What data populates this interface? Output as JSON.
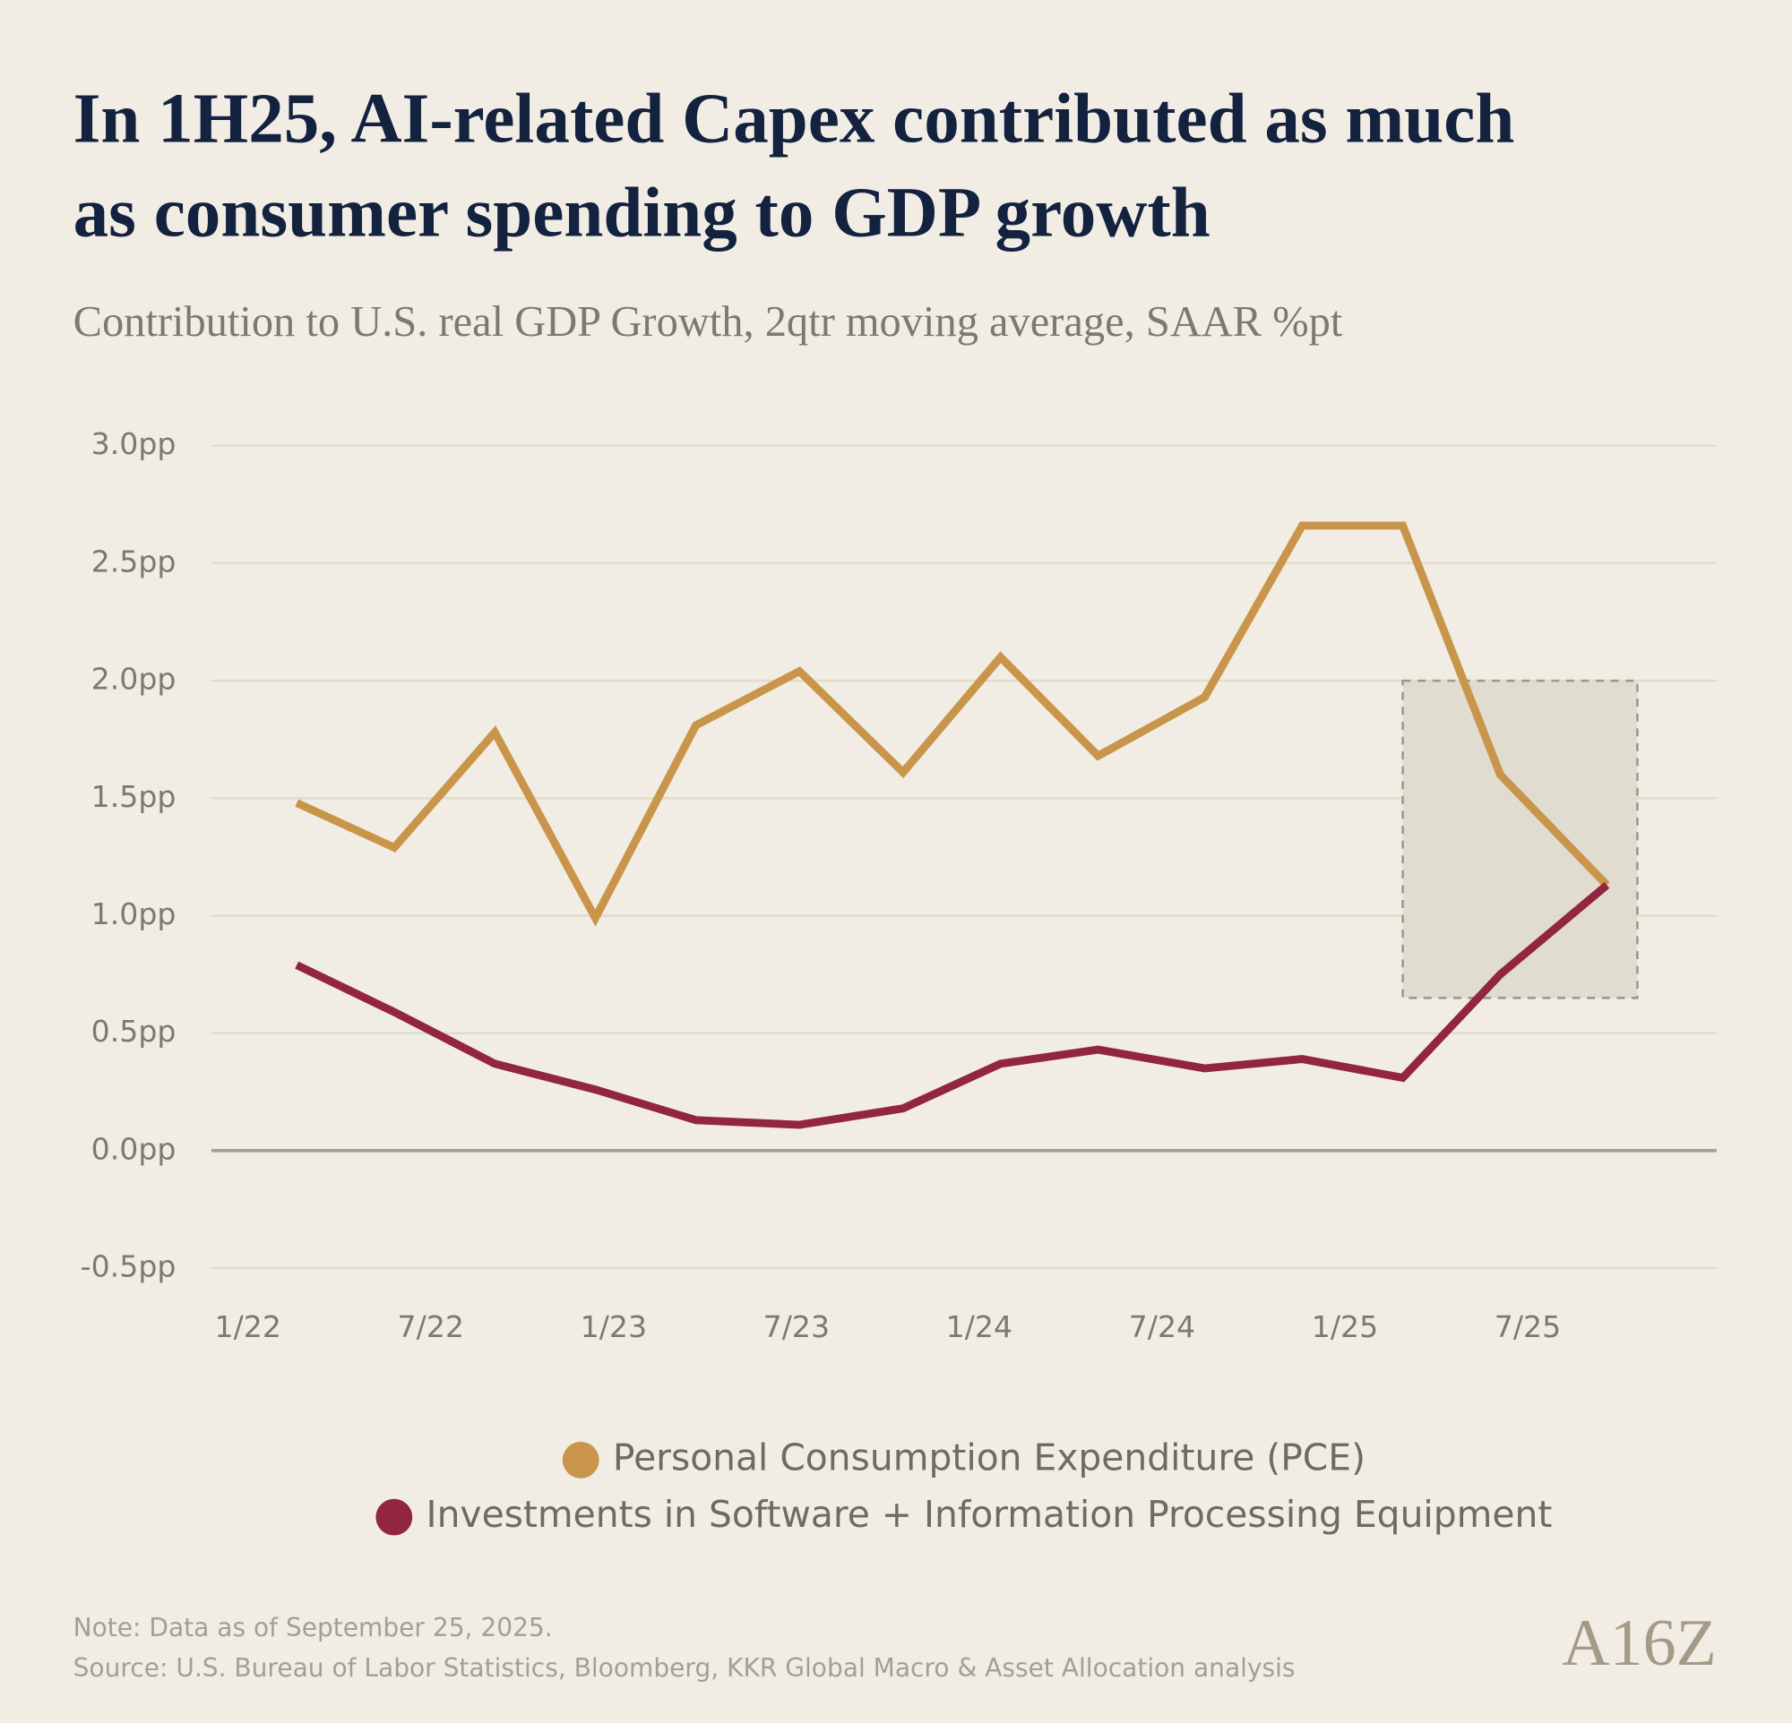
{
  "chart_data": {
    "type": "line",
    "title": [
      "In 1H25, AI-related Capex contributed as much",
      "as consumer spending to GDP growth"
    ],
    "subtitle": "Contribution to U.S. real GDP Growth, 2qtr moving average, SAAR %pt",
    "x": [
      1.6,
      4.8,
      8.1,
      11.4,
      14.7,
      18.1,
      21.5,
      24.7,
      27.9,
      31.4,
      34.6,
      37.9,
      41.1,
      44.6
    ],
    "series": [
      {
        "name": "Personal Consumption Expenditure (PCE)",
        "color": "#c8954a",
        "values": [
          1.48,
          1.29,
          1.78,
          0.99,
          1.81,
          2.04,
          1.61,
          2.1,
          1.68,
          1.93,
          2.66,
          2.66,
          1.6,
          1.13
        ]
      },
      {
        "name": "Investments in Software + Information Processing Equipment",
        "color": "#93263f",
        "values": [
          0.79,
          0.59,
          0.37,
          0.26,
          0.13,
          0.11,
          0.18,
          0.37,
          0.43,
          0.35,
          0.39,
          0.31,
          0.75,
          1.13
        ]
      }
    ],
    "xlim": [
      -1.2,
      48.2
    ],
    "xticks": [
      {
        "value": 0,
        "label": "1/22"
      },
      {
        "value": 6,
        "label": "7/22"
      },
      {
        "value": 12,
        "label": "1/23"
      },
      {
        "value": 18,
        "label": "7/23"
      },
      {
        "value": 24,
        "label": "1/24"
      },
      {
        "value": 30,
        "label": "7/24"
      },
      {
        "value": 36,
        "label": "1/25"
      },
      {
        "value": 42,
        "label": "7/25"
      }
    ],
    "ylim": [
      -0.5,
      3.0
    ],
    "yticks": [
      {
        "value": -0.5,
        "label": "-0.5pp"
      },
      {
        "value": 0,
        "label": "0.0pp"
      },
      {
        "value": 0.5,
        "label": "0.5pp"
      },
      {
        "value": 1,
        "label": "1.0pp"
      },
      {
        "value": 1.5,
        "label": "1.5pp"
      },
      {
        "value": 2,
        "label": "2.0pp"
      },
      {
        "value": 2.5,
        "label": "2.5pp"
      },
      {
        "value": 3,
        "label": "3.0pp"
      }
    ],
    "grid": true,
    "highlight": {
      "xlim": [
        37.9,
        45.6
      ],
      "ylim": [
        0.65,
        2.0
      ]
    },
    "notes": [
      "Note: Data as of September 25, 2025.",
      "Source: U.S. Bureau of Labor Statistics, Bloomberg, KKR Global Macro & Asset Allocation analysis"
    ],
    "logo": "A16Z"
  }
}
